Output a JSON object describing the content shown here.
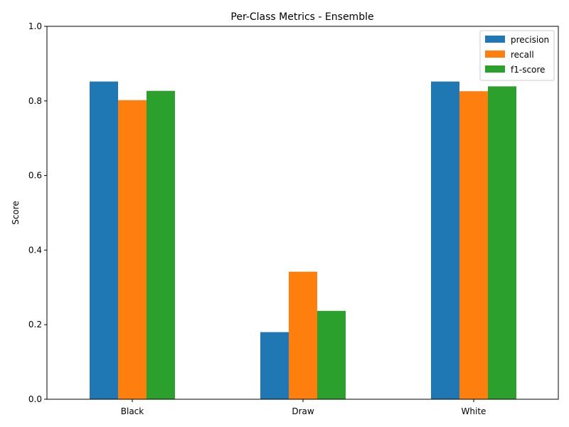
{
  "chart_data": {
    "type": "bar",
    "title": "Per-Class Metrics - Ensemble",
    "xlabel": "",
    "ylabel": "Score",
    "categories": [
      "Black",
      "Draw",
      "White"
    ],
    "series": [
      {
        "name": "precision",
        "color": "#1f77b4",
        "values": [
          0.852,
          0.18,
          0.852
        ]
      },
      {
        "name": "recall",
        "color": "#ff7f0e",
        "values": [
          0.802,
          0.342,
          0.826
        ]
      },
      {
        "name": "f1-score",
        "color": "#2ca02c",
        "values": [
          0.827,
          0.237,
          0.839
        ]
      }
    ],
    "ylim": [
      0,
      1.0
    ],
    "yticks": [
      0.0,
      0.2,
      0.4,
      0.6,
      0.8,
      1.0
    ],
    "ytick_labels": [
      "0.0",
      "0.2",
      "0.4",
      "0.6",
      "0.8",
      "1.0"
    ],
    "grid": false,
    "legend_position": "top-right"
  }
}
